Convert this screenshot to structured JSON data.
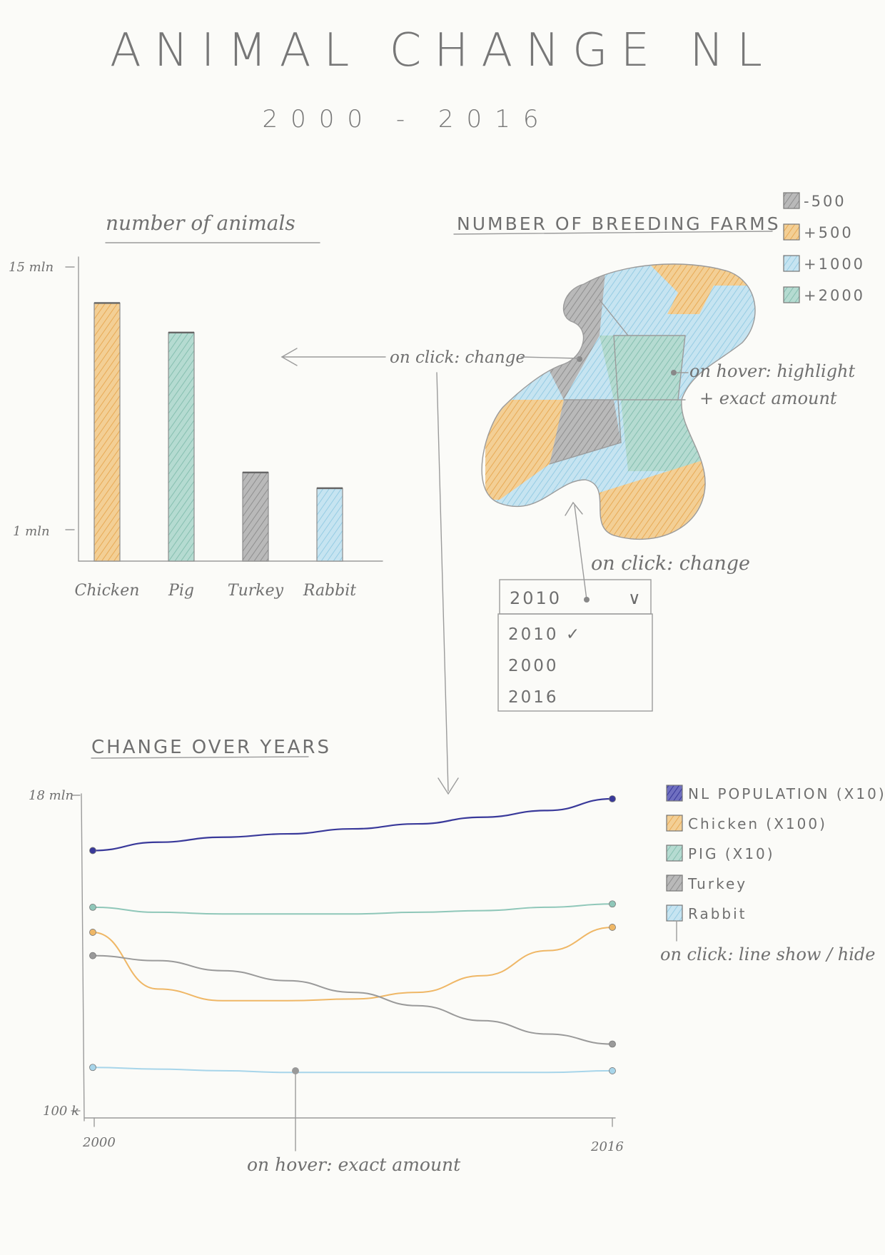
{
  "header": {
    "title": "ANIMAL CHANGE NL",
    "subtitle": "2000 - 2016"
  },
  "colors": {
    "gray": "#9a9a9a",
    "orange": "#efb766",
    "blue": "#a7d5ea",
    "teal": "#8fc7b9",
    "navy": "#39399a",
    "pencil": "#9b9b9b"
  },
  "bar_section": {
    "title": "number of animals",
    "y_top_label": "15 mln",
    "y_bottom_label": "1 mln"
  },
  "map_section": {
    "title": "NUMBER OF BREEDING FARMS",
    "legend": [
      {
        "label": "-500",
        "color": "#9a9a9a"
      },
      {
        "label": "+500",
        "color": "#efb766"
      },
      {
        "label": "+1000",
        "color": "#a7d5ea"
      },
      {
        "label": "+2000",
        "color": "#8fc7b9"
      }
    ],
    "hover_note_line1": "on hover: highlight",
    "hover_note_line2": "+ exact amount",
    "click_note_map": "on click: change",
    "click_note_dropdown": "on click: change"
  },
  "dropdown": {
    "selected": "2010",
    "options": [
      "2010 ✓",
      "2000",
      "2016"
    ]
  },
  "line_section": {
    "title": "CHANGE OVER YEARS",
    "y_top_label": "18 mln",
    "y_bottom_label": "100 k",
    "hover_note": "on hover: exact amount",
    "legend": [
      {
        "label": "NL POPULATION (X10)",
        "color": "#39399a"
      },
      {
        "label": "Chicken (X100)",
        "color": "#efb766"
      },
      {
        "label": "PIG (X10)",
        "color": "#8fc7b9"
      },
      {
        "label": "Turkey",
        "color": "#9a9a9a"
      },
      {
        "label": "Rabbit",
        "color": "#a7d5ea"
      }
    ],
    "legend_note": "on click: line show / hide"
  },
  "chart_data": [
    {
      "type": "bar",
      "title": "number of animals",
      "categories": [
        "Chicken",
        "Pig",
        "Turkey",
        "Rabbit"
      ],
      "values": [
        13.1,
        11.6,
        4.5,
        3.7
      ],
      "ylim": [
        0,
        15
      ],
      "colors": [
        "#efb766",
        "#8fc7b9",
        "#9a9a9a",
        "#a7d5ea"
      ],
      "grid": false,
      "legend": "none"
    },
    {
      "type": "line",
      "title": "CHANGE OVER YEARS",
      "x": [
        2000,
        2002,
        2004,
        2006,
        2008,
        2010,
        2012,
        2014,
        2016
      ],
      "series": [
        {
          "name": "NL POPULATION (X10)",
          "values": [
            15.6,
            16.1,
            16.4,
            16.6,
            16.9,
            17.2,
            17.6,
            18.0,
            18.7
          ]
        },
        {
          "name": "PIG (X10)",
          "values": [
            12.2,
            11.9,
            11.8,
            11.8,
            11.8,
            11.9,
            12.0,
            12.2,
            12.4
          ]
        },
        {
          "name": "Chicken (X100)",
          "values": [
            10.7,
            7.3,
            6.6,
            6.6,
            6.7,
            7.1,
            8.1,
            9.6,
            11.0
          ]
        },
        {
          "name": "Turkey",
          "values": [
            9.3,
            9.0,
            8.4,
            7.8,
            7.1,
            6.3,
            5.4,
            4.6,
            4.0
          ]
        },
        {
          "name": "Rabbit",
          "values": [
            2.6,
            2.5,
            2.4,
            2.3,
            2.3,
            2.3,
            2.3,
            2.3,
            2.4
          ]
        }
      ],
      "xlim": [
        2000,
        2016
      ],
      "ylim": [
        0,
        19
      ],
      "grid": false,
      "legend": "right"
    }
  ]
}
